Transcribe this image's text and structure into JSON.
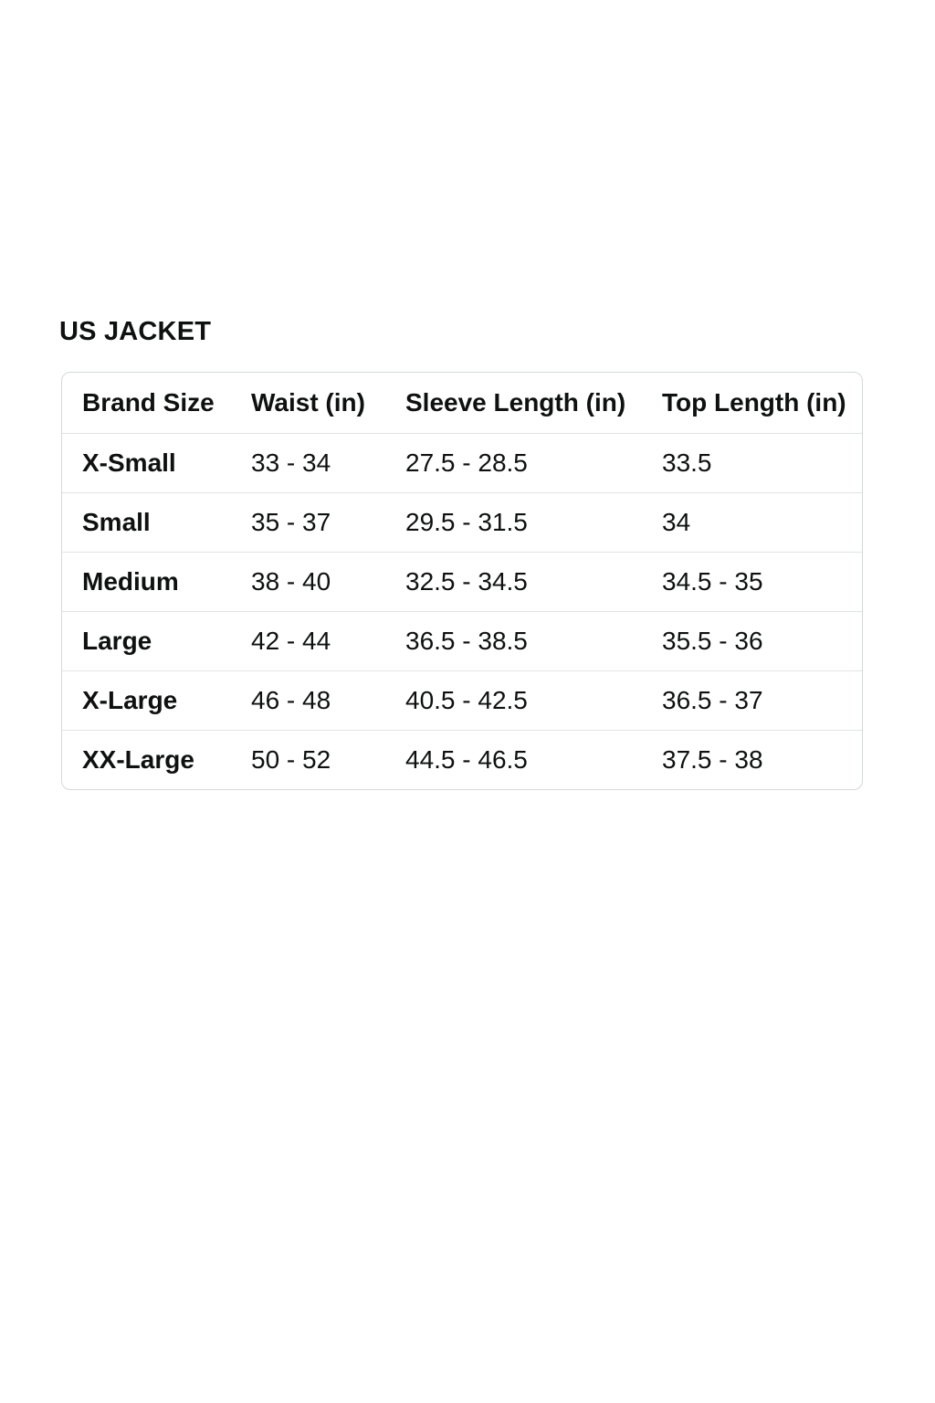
{
  "section_title": "US JACKET",
  "table": {
    "columns": [
      "Brand Size",
      "Waist (in)",
      "Sleeve Length (in)",
      "Top Length (in)"
    ],
    "rows": [
      [
        "X-Small",
        "33 - 34",
        "27.5 - 28.5",
        "33.5"
      ],
      [
        "Small",
        "35 - 37",
        "29.5 - 31.5",
        "34"
      ],
      [
        "Medium",
        "38 - 40",
        "32.5 - 34.5",
        "34.5 - 35"
      ],
      [
        "Large",
        "42 - 44",
        "36.5 - 38.5",
        "35.5 - 36"
      ],
      [
        "X-Large",
        "46 - 48",
        "40.5 - 42.5",
        "36.5 - 37"
      ],
      [
        "XX-Large",
        "50 - 52",
        "44.5 - 46.5",
        "37.5 - 38"
      ]
    ],
    "colors": {
      "text": "#0f1111",
      "card_border": "#d5d9d9",
      "row_divider": "#e0e4e4",
      "background": "#ffffff"
    }
  }
}
